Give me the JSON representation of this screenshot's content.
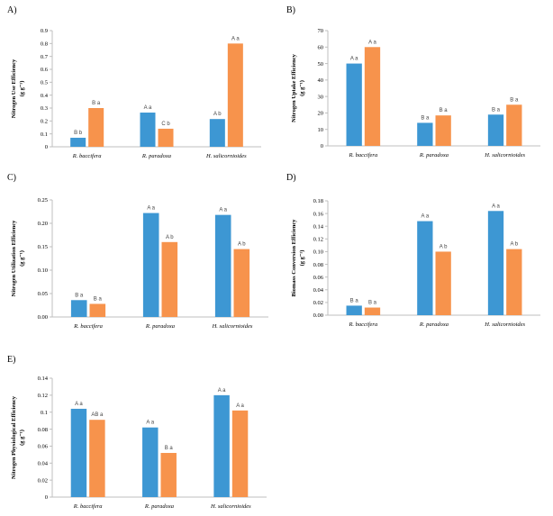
{
  "colors": {
    "series1": "#3d97d3",
    "series2": "#f7934c",
    "axis": "#bfbfbf"
  },
  "chart_data": [
    {
      "panel": "A)",
      "type": "bar",
      "ylabel": "Nitrogen Use Efficiency",
      "yunit": "(g g⁻¹)",
      "categories": [
        "R. baccifera",
        "R. paradoxa",
        "H. salicornioides"
      ],
      "ylim": [
        0,
        0.9
      ],
      "yticks": [
        "0",
        "0.1",
        "0.2",
        "0.3",
        "0.4",
        "0.5",
        "0.6",
        "0.7",
        "0.8",
        "0.9"
      ],
      "series": [
        {
          "values": [
            0.07,
            0.265,
            0.215
          ],
          "labels": [
            "B b",
            "A a",
            "A b"
          ]
        },
        {
          "values": [
            0.3,
            0.14,
            0.8
          ],
          "labels": [
            "B a",
            "C b",
            "A a"
          ]
        }
      ]
    },
    {
      "panel": "B)",
      "type": "bar",
      "ylabel": "Nitrogen Uptake Efficiency",
      "yunit": "(g g⁻¹)",
      "categories": [
        "R. baccifera",
        "R. paradoxa",
        "H. salicornioides"
      ],
      "ylim": [
        0,
        70
      ],
      "yticks": [
        "0",
        "10",
        "20",
        "30",
        "40",
        "50",
        "60",
        "70"
      ],
      "series": [
        {
          "values": [
            50,
            14,
            19
          ],
          "labels": [
            "A a",
            "B a",
            "B a"
          ]
        },
        {
          "values": [
            60,
            18.5,
            25
          ],
          "labels": [
            "A a",
            "B a",
            "B a"
          ]
        }
      ]
    },
    {
      "panel": "C)",
      "type": "bar",
      "ylabel": "Nitrogen Utilization Efficiency",
      "yunit": "(g g⁻¹)",
      "categories": [
        "R. baccifera",
        "R. paradoxa",
        "H. salicornioides"
      ],
      "ylim": [
        0,
        0.25
      ],
      "yticks": [
        "0.00",
        "0.05",
        "0.10",
        "0.15",
        "0.20",
        "0.25"
      ],
      "series": [
        {
          "values": [
            0.036,
            0.222,
            0.218
          ],
          "labels": [
            "B a",
            "A a",
            "A a"
          ]
        },
        {
          "values": [
            0.028,
            0.16,
            0.145
          ],
          "labels": [
            "B a",
            "A b",
            "A b"
          ]
        }
      ]
    },
    {
      "panel": "D)",
      "type": "bar",
      "ylabel": "Biomass Conversion Efficiency",
      "yunit": "(g g⁻¹)",
      "categories": [
        "R. baccifera",
        "R. paradoxa",
        "H. salicornioides"
      ],
      "ylim": [
        0,
        0.18
      ],
      "yticks": [
        "0.00",
        "0.02",
        "0.04",
        "0.06",
        "0.08",
        "0.10",
        "0.12",
        "0.14",
        "0.16",
        "0.18"
      ],
      "series": [
        {
          "values": [
            0.015,
            0.148,
            0.164
          ],
          "labels": [
            "B a",
            "A a",
            "A a"
          ]
        },
        {
          "values": [
            0.012,
            0.1,
            0.104
          ],
          "labels": [
            "B a",
            "A b",
            "A b"
          ]
        }
      ]
    },
    {
      "panel": "E)",
      "type": "bar",
      "ylabel": "Nitrogen Physiological Efficiency",
      "yunit": "(g g⁻¹)",
      "categories": [
        "R. baccifera",
        "R. paradoxa",
        "H. salicornioides"
      ],
      "ylim": [
        0,
        0.14
      ],
      "yticks": [
        "0",
        "0.02",
        "0.04",
        "0.06",
        "0.08",
        "0.1",
        "0.12",
        "0.14"
      ],
      "series": [
        {
          "values": [
            0.104,
            0.082,
            0.12
          ],
          "labels": [
            "A a",
            "A a",
            "A a"
          ]
        },
        {
          "values": [
            0.091,
            0.052,
            0.102
          ],
          "labels": [
            "AB a",
            "B a",
            "A a"
          ]
        }
      ]
    }
  ]
}
